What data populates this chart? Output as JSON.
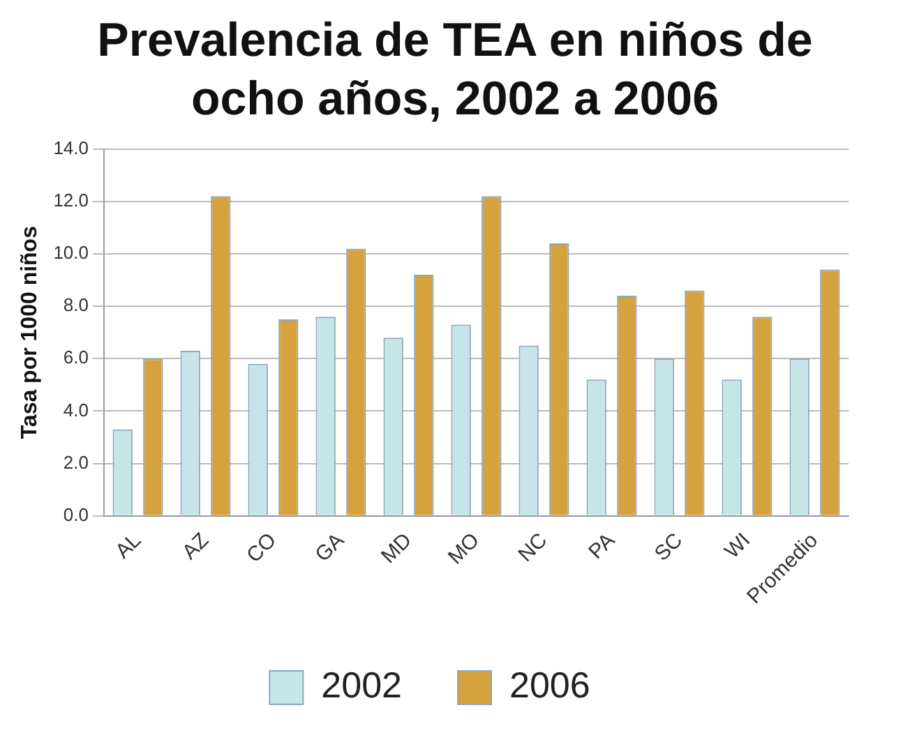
{
  "chart_data": {
    "type": "bar",
    "title": "Prevalencia de TEA en niños de ocho años, 2002 a 2006",
    "ylabel": "Tasa por 1000 niños",
    "categories": [
      "AL",
      "AZ",
      "CO",
      "GA",
      "MD",
      "MO",
      "NC",
      "PA",
      "SC",
      "WI",
      "Promedio"
    ],
    "series": [
      {
        "name": "2002",
        "color": "#c6e5e8",
        "values": [
          3.3,
          6.3,
          5.8,
          7.6,
          6.8,
          7.3,
          6.5,
          5.2,
          6.0,
          5.2,
          6.0
        ]
      },
      {
        "name": "2006",
        "color": "#d6a23e",
        "values": [
          6.0,
          12.2,
          7.5,
          10.2,
          9.2,
          12.2,
          10.4,
          8.4,
          8.6,
          7.6,
          9.4
        ]
      }
    ],
    "ylim": [
      0,
      14
    ],
    "yticks": [
      {
        "value": 0,
        "label": "0.0"
      },
      {
        "value": 2,
        "label": "2.0"
      },
      {
        "value": 4,
        "label": "4.0"
      },
      {
        "value": 6,
        "label": "6.0"
      },
      {
        "value": 8,
        "label": "8.0"
      },
      {
        "value": 10,
        "label": "10.0"
      },
      {
        "value": 12,
        "label": "12.0"
      },
      {
        "value": 14,
        "label": "14.0"
      }
    ],
    "grid": "y",
    "legend": "bottom"
  }
}
